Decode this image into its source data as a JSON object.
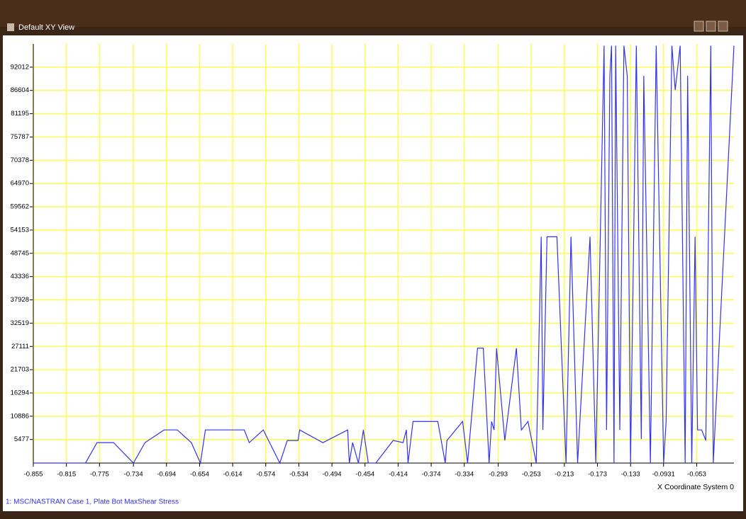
{
  "window": {
    "title": "Default XY View"
  },
  "chart_data": {
    "type": "line",
    "x_label": "X Coordinate System 0",
    "x": [
      -0.855,
      -0.792,
      -0.778,
      -0.758,
      -0.734,
      -0.72,
      -0.697,
      -0.681,
      -0.664,
      -0.653,
      -0.647,
      -0.6,
      -0.594,
      -0.577,
      -0.557,
      -0.548,
      -0.535,
      -0.533,
      -0.505,
      -0.475,
      -0.473,
      -0.469,
      -0.462,
      -0.456,
      -0.45,
      -0.441,
      -0.42,
      -0.408,
      -0.404,
      -0.402,
      -0.396,
      -0.366,
      -0.357,
      -0.355,
      -0.336,
      -0.33,
      -0.318,
      -0.311,
      -0.304,
      -0.301,
      -0.298,
      -0.295,
      -0.285,
      -0.271,
      -0.265,
      -0.257,
      -0.247,
      -0.241,
      -0.239,
      -0.234,
      -0.222,
      -0.211,
      -0.205,
      -0.197,
      -0.182,
      -0.175,
      -0.165,
      -0.162,
      -0.158,
      -0.156,
      -0.153,
      -0.151,
      -0.146,
      -0.141,
      -0.137,
      -0.133,
      -0.126,
      -0.12,
      -0.117,
      -0.109,
      -0.102,
      -0.093,
      -0.09,
      -0.083,
      -0.079,
      -0.073,
      -0.067,
      -0.064,
      -0.059,
      -0.055,
      -0.052,
      -0.047,
      -0.042,
      -0.036,
      -0.033,
      -0.008
    ],
    "series": [
      {
        "name": "1: MSC/NASTRAN Case 1, Plate Bot MaxShear Stress",
        "color": "#3333ee",
        "values": [
          0,
          0,
          4750,
          4750,
          0,
          4750,
          7700,
          7700,
          4750,
          0,
          7700,
          7700,
          4750,
          7700,
          0,
          5250,
          5250,
          7700,
          4750,
          7700,
          0,
          4750,
          0,
          7700,
          0,
          0,
          5250,
          4750,
          7700,
          0,
          9670,
          9670,
          0,
          5250,
          9670,
          0,
          26700,
          26700,
          0,
          9670,
          7700,
          26700,
          5250,
          26700,
          7700,
          9670,
          0,
          52600,
          7700,
          52600,
          52600,
          0,
          52600,
          0,
          52600,
          0,
          97000,
          7700,
          90000,
          97000,
          0,
          97000,
          7700,
          97000,
          90000,
          0,
          97000,
          5570,
          90000,
          0,
          97000,
          0,
          9670,
          97000,
          86700,
          97000,
          0,
          90000,
          0,
          52600,
          7700,
          7700,
          5250,
          97000,
          0,
          97000
        ]
      }
    ],
    "xlim": [
      -0.855,
      -0.008
    ],
    "xticks": [
      -0.855,
      -0.815,
      -0.775,
      -0.734,
      -0.694,
      -0.654,
      -0.614,
      -0.574,
      -0.534,
      -0.494,
      -0.454,
      -0.414,
      -0.374,
      -0.334,
      -0.293,
      -0.253,
      -0.213,
      -0.173,
      -0.133,
      -0.0931,
      -0.053
    ],
    "ylim": [
      0,
      97420
    ],
    "yticks": [
      5477,
      10886,
      16294,
      21703,
      27111,
      32519,
      37928,
      43336,
      48745,
      54153,
      59562,
      64970,
      70378,
      75787,
      81195,
      86604,
      92012
    ],
    "grid": true,
    "grid_color": "#ffff55"
  }
}
